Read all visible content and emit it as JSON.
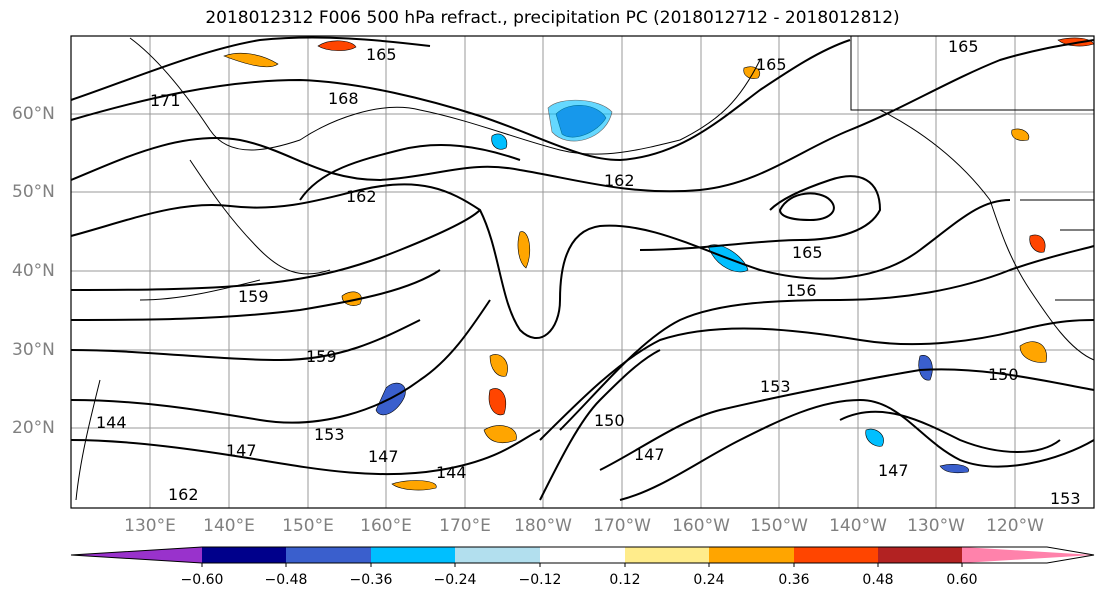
{
  "title": "2018012312 F006 500 hPa refract., precipitation PC (2018012712 - 2018012812)",
  "lat_labels": [
    "60°N",
    "50°N",
    "40°N",
    "30°N",
    "20°N"
  ],
  "lon_labels": [
    "130°E",
    "140°E",
    "150°E",
    "160°E",
    "170°E",
    "180°W",
    "170°W",
    "160°W",
    "150°W",
    "140°W",
    "130°W",
    "120°W"
  ],
  "contour_labels": [
    "165",
    "171",
    "168",
    "162",
    "165",
    "162",
    "165",
    "156",
    "159",
    "159",
    "153",
    "153",
    "150",
    "150",
    "147",
    "147",
    "144",
    "144",
    "162",
    "147",
    "165",
    "153",
    "147"
  ],
  "colorbar": {
    "ticks": [
      "−0.60",
      "−0.48",
      "−0.36",
      "−0.24",
      "−0.12",
      "0.12",
      "0.24",
      "0.36",
      "0.48",
      "0.60"
    ],
    "colors": [
      "#9932cc",
      "#00008b",
      "#3a5fcd",
      "#00bfff",
      "#b2dfee",
      "#ffffff",
      "#ffec8b",
      "#ffa500",
      "#ff4500",
      "#b22222",
      "#ff82ab"
    ]
  }
}
